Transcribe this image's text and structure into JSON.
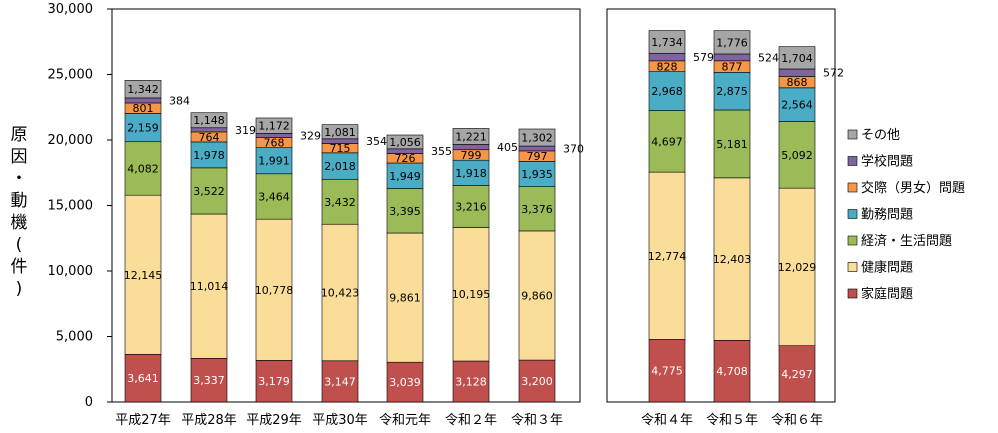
{
  "chart_data": {
    "type": "bar",
    "stacked": true,
    "ylabel": "原因・動機(件)",
    "ylim": [
      0,
      30000
    ],
    "yticks": [
      "0",
      "5,000",
      "10,000",
      "15,000",
      "20,000",
      "25,000",
      "30,000"
    ],
    "ytick_values": [
      0,
      5000,
      10000,
      15000,
      20000,
      25000,
      30000
    ],
    "grid": false,
    "legend_position": "right",
    "panels": [
      {
        "categories": [
          "平成27年",
          "平成28年",
          "平成29年",
          "平成30年",
          "令和元年",
          "令和２年",
          "令和３年"
        ],
        "series": [
          {
            "name": "家庭問題",
            "color": "#c0504d",
            "values": [
              3641,
              3337,
              3179,
              3147,
              3039,
              3128,
              3200
            ],
            "labels": [
              "3,641",
              "3,337",
              "3,179",
              "3,147",
              "3,039",
              "3,128",
              "3,200"
            ]
          },
          {
            "name": "健康問題",
            "color": "#fadd98",
            "values": [
              12145,
              11014,
              10778,
              10423,
              9861,
              10195,
              9860
            ],
            "labels": [
              "12,145",
              "11,014",
              "10,778",
              "10,423",
              "9,861",
              "10,195",
              "9,860"
            ]
          },
          {
            "name": "経済・生活問題",
            "color": "#9bbb59",
            "values": [
              4082,
              3522,
              3464,
              3432,
              3395,
              3216,
              3376
            ],
            "labels": [
              "4,082",
              "3,522",
              "3,464",
              "3,432",
              "3,395",
              "3,216",
              "3,376"
            ]
          },
          {
            "name": "勤務問題",
            "color": "#4bacc6",
            "values": [
              2159,
              1978,
              1991,
              2018,
              1949,
              1918,
              1935
            ],
            "labels": [
              "2,159",
              "1,978",
              "1,991",
              "2,018",
              "1,949",
              "1,918",
              "1,935"
            ]
          },
          {
            "name": "交際（男女）問題",
            "color": "#f79646",
            "values": [
              801,
              764,
              768,
              715,
              726,
              799,
              797
            ],
            "labels": [
              "801",
              "764",
              "768",
              "715",
              "726",
              "799",
              "797"
            ]
          },
          {
            "name": "学校問題",
            "color": "#8064a2",
            "values": [
              384,
              319,
              329,
              354,
              355,
              405,
              370
            ],
            "labels": [
              "384",
              "319",
              "329",
              "354",
              "355",
              "405",
              "370"
            ]
          },
          {
            "name": "その他",
            "color": "#a6a6a6",
            "values": [
              1342,
              1148,
              1172,
              1081,
              1056,
              1221,
              1302
            ],
            "labels": [
              "1,342",
              "1,148",
              "1,172",
              "1,081",
              "1,056",
              "1,221",
              "1,302"
            ]
          }
        ]
      },
      {
        "categories": [
          "令和４年",
          "令和５年",
          "令和６年"
        ],
        "series": [
          {
            "name": "家庭問題",
            "color": "#c0504d",
            "values": [
              4775,
              4708,
              4297
            ],
            "labels": [
              "4,775",
              "4,708",
              "4,297"
            ]
          },
          {
            "name": "健康問題",
            "color": "#fadd98",
            "values": [
              12774,
              12403,
              12029
            ],
            "labels": [
              "12,774",
              "12,403",
              "12,029"
            ]
          },
          {
            "name": "経済・生活問題",
            "color": "#9bbb59",
            "values": [
              4697,
              5181,
              5092
            ],
            "labels": [
              "4,697",
              "5,181",
              "5,092"
            ]
          },
          {
            "name": "勤務問題",
            "color": "#4bacc6",
            "values": [
              2968,
              2875,
              2564
            ],
            "labels": [
              "2,968",
              "2,875",
              "2,564"
            ]
          },
          {
            "name": "交際（男女）問題",
            "color": "#f79646",
            "values": [
              828,
              877,
              868
            ],
            "labels": [
              "828",
              "877",
              "868"
            ]
          },
          {
            "name": "学校問題",
            "color": "#8064a2",
            "values": [
              579,
              524,
              572
            ],
            "labels": [
              "579",
              "524",
              "572"
            ]
          },
          {
            "name": "その他",
            "color": "#a6a6a6",
            "values": [
              1734,
              1776,
              1704
            ],
            "labels": [
              "1,734",
              "1,776",
              "1,704"
            ]
          }
        ]
      }
    ],
    "legend": [
      {
        "name": "その他",
        "color": "#a6a6a6"
      },
      {
        "name": "学校問題",
        "color": "#8064a2"
      },
      {
        "name": "交際（男女）問題",
        "color": "#f79646"
      },
      {
        "name": "勤務問題",
        "color": "#4bacc6"
      },
      {
        "name": "経済・生活問題",
        "color": "#9bbb59"
      },
      {
        "name": "健康問題",
        "color": "#fadd98"
      },
      {
        "name": "家庭問題",
        "color": "#c0504d"
      }
    ]
  }
}
